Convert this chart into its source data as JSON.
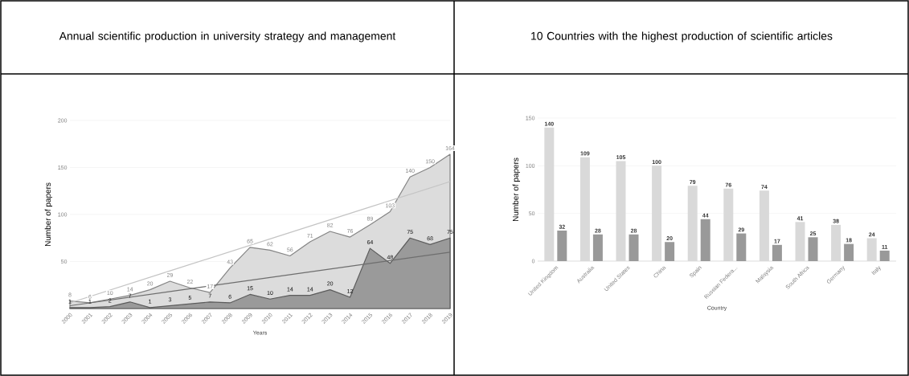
{
  "chart_data": [
    {
      "type": "area",
      "title": "Annual scientific production in university strategy and management",
      "xlabel": "Years",
      "ylabel": "Number of papers",
      "x": [
        2000,
        2001,
        2002,
        2003,
        2004,
        2005,
        2006,
        2007,
        2008,
        2009,
        2010,
        2011,
        2012,
        2013,
        2014,
        2015,
        2016,
        2017,
        2018,
        2019
      ],
      "xlim": [
        2000,
        2019
      ],
      "xticks": [
        2000,
        2001,
        2002,
        2003,
        2004,
        2005,
        2006,
        2007,
        2008,
        2009,
        2010,
        2011,
        2012,
        2013,
        2014,
        2015,
        2016,
        2017,
        2018,
        2019
      ],
      "ylim": [
        0,
        200
      ],
      "yticks": [
        50,
        100,
        150,
        200
      ],
      "grid": "y",
      "series": [
        {
          "color": "#dcdcdc",
          "values": [
            8,
            6,
            10,
            14,
            20,
            29,
            22,
            17,
            43,
            65,
            62,
            56,
            71,
            82,
            76,
            89,
            103,
            140,
            150,
            164
          ],
          "value_labels": [
            "8",
            "6",
            "10",
            "14",
            "20",
            "29",
            "22",
            "17",
            "43",
            "65",
            "62",
            "56",
            "71",
            "82",
            "76",
            "89",
            "103",
            "140",
            "150",
            "164"
          ]
        },
        {
          "color": "#9a9a9a",
          "values": [
            1,
            1,
            2,
            7,
            1,
            3,
            5,
            7,
            6,
            15,
            10,
            14,
            14,
            20,
            12,
            64,
            48,
            75,
            68,
            75
          ],
          "value_labels": [
            "1",
            "1",
            "2",
            "7",
            "1",
            "3",
            "5",
            "7",
            "6",
            "15",
            "10",
            "14",
            "14",
            "20",
            "12",
            "64",
            "48",
            "75",
            "68",
            "75"
          ]
        },
        {
          "type": "line",
          "color": "#c4c4c4",
          "x": [
            2000,
            2005,
            2010,
            2015,
            2019
          ],
          "values": [
            6,
            40,
            74,
            108,
            135
          ]
        },
        {
          "type": "line",
          "color": "#6e6e6e",
          "x": [
            2000,
            2005,
            2010,
            2015,
            2019
          ],
          "values": [
            3,
            18,
            33,
            48,
            60
          ]
        }
      ]
    },
    {
      "type": "bar",
      "title": "10 Countries with the highest production of scientific articles",
      "xlabel": "Country",
      "ylabel": "Number of papers",
      "categories": [
        "United Kingdom",
        "Australia",
        "United States",
        "China",
        "Spain",
        "Russian Federa...",
        "Malaysia",
        "South Africa",
        "Germany",
        "Italy"
      ],
      "ylim": [
        0,
        150
      ],
      "yticks": [
        0,
        50,
        100,
        150
      ],
      "grid": "y",
      "data_labels": true,
      "series": [
        {
          "color": "#d9d9d9",
          "values": [
            140,
            109,
            105,
            100,
            79,
            76,
            74,
            41,
            38,
            24
          ]
        },
        {
          "color": "#999999",
          "values": [
            32,
            28,
            28,
            20,
            44,
            29,
            17,
            25,
            18,
            11
          ]
        }
      ]
    }
  ]
}
